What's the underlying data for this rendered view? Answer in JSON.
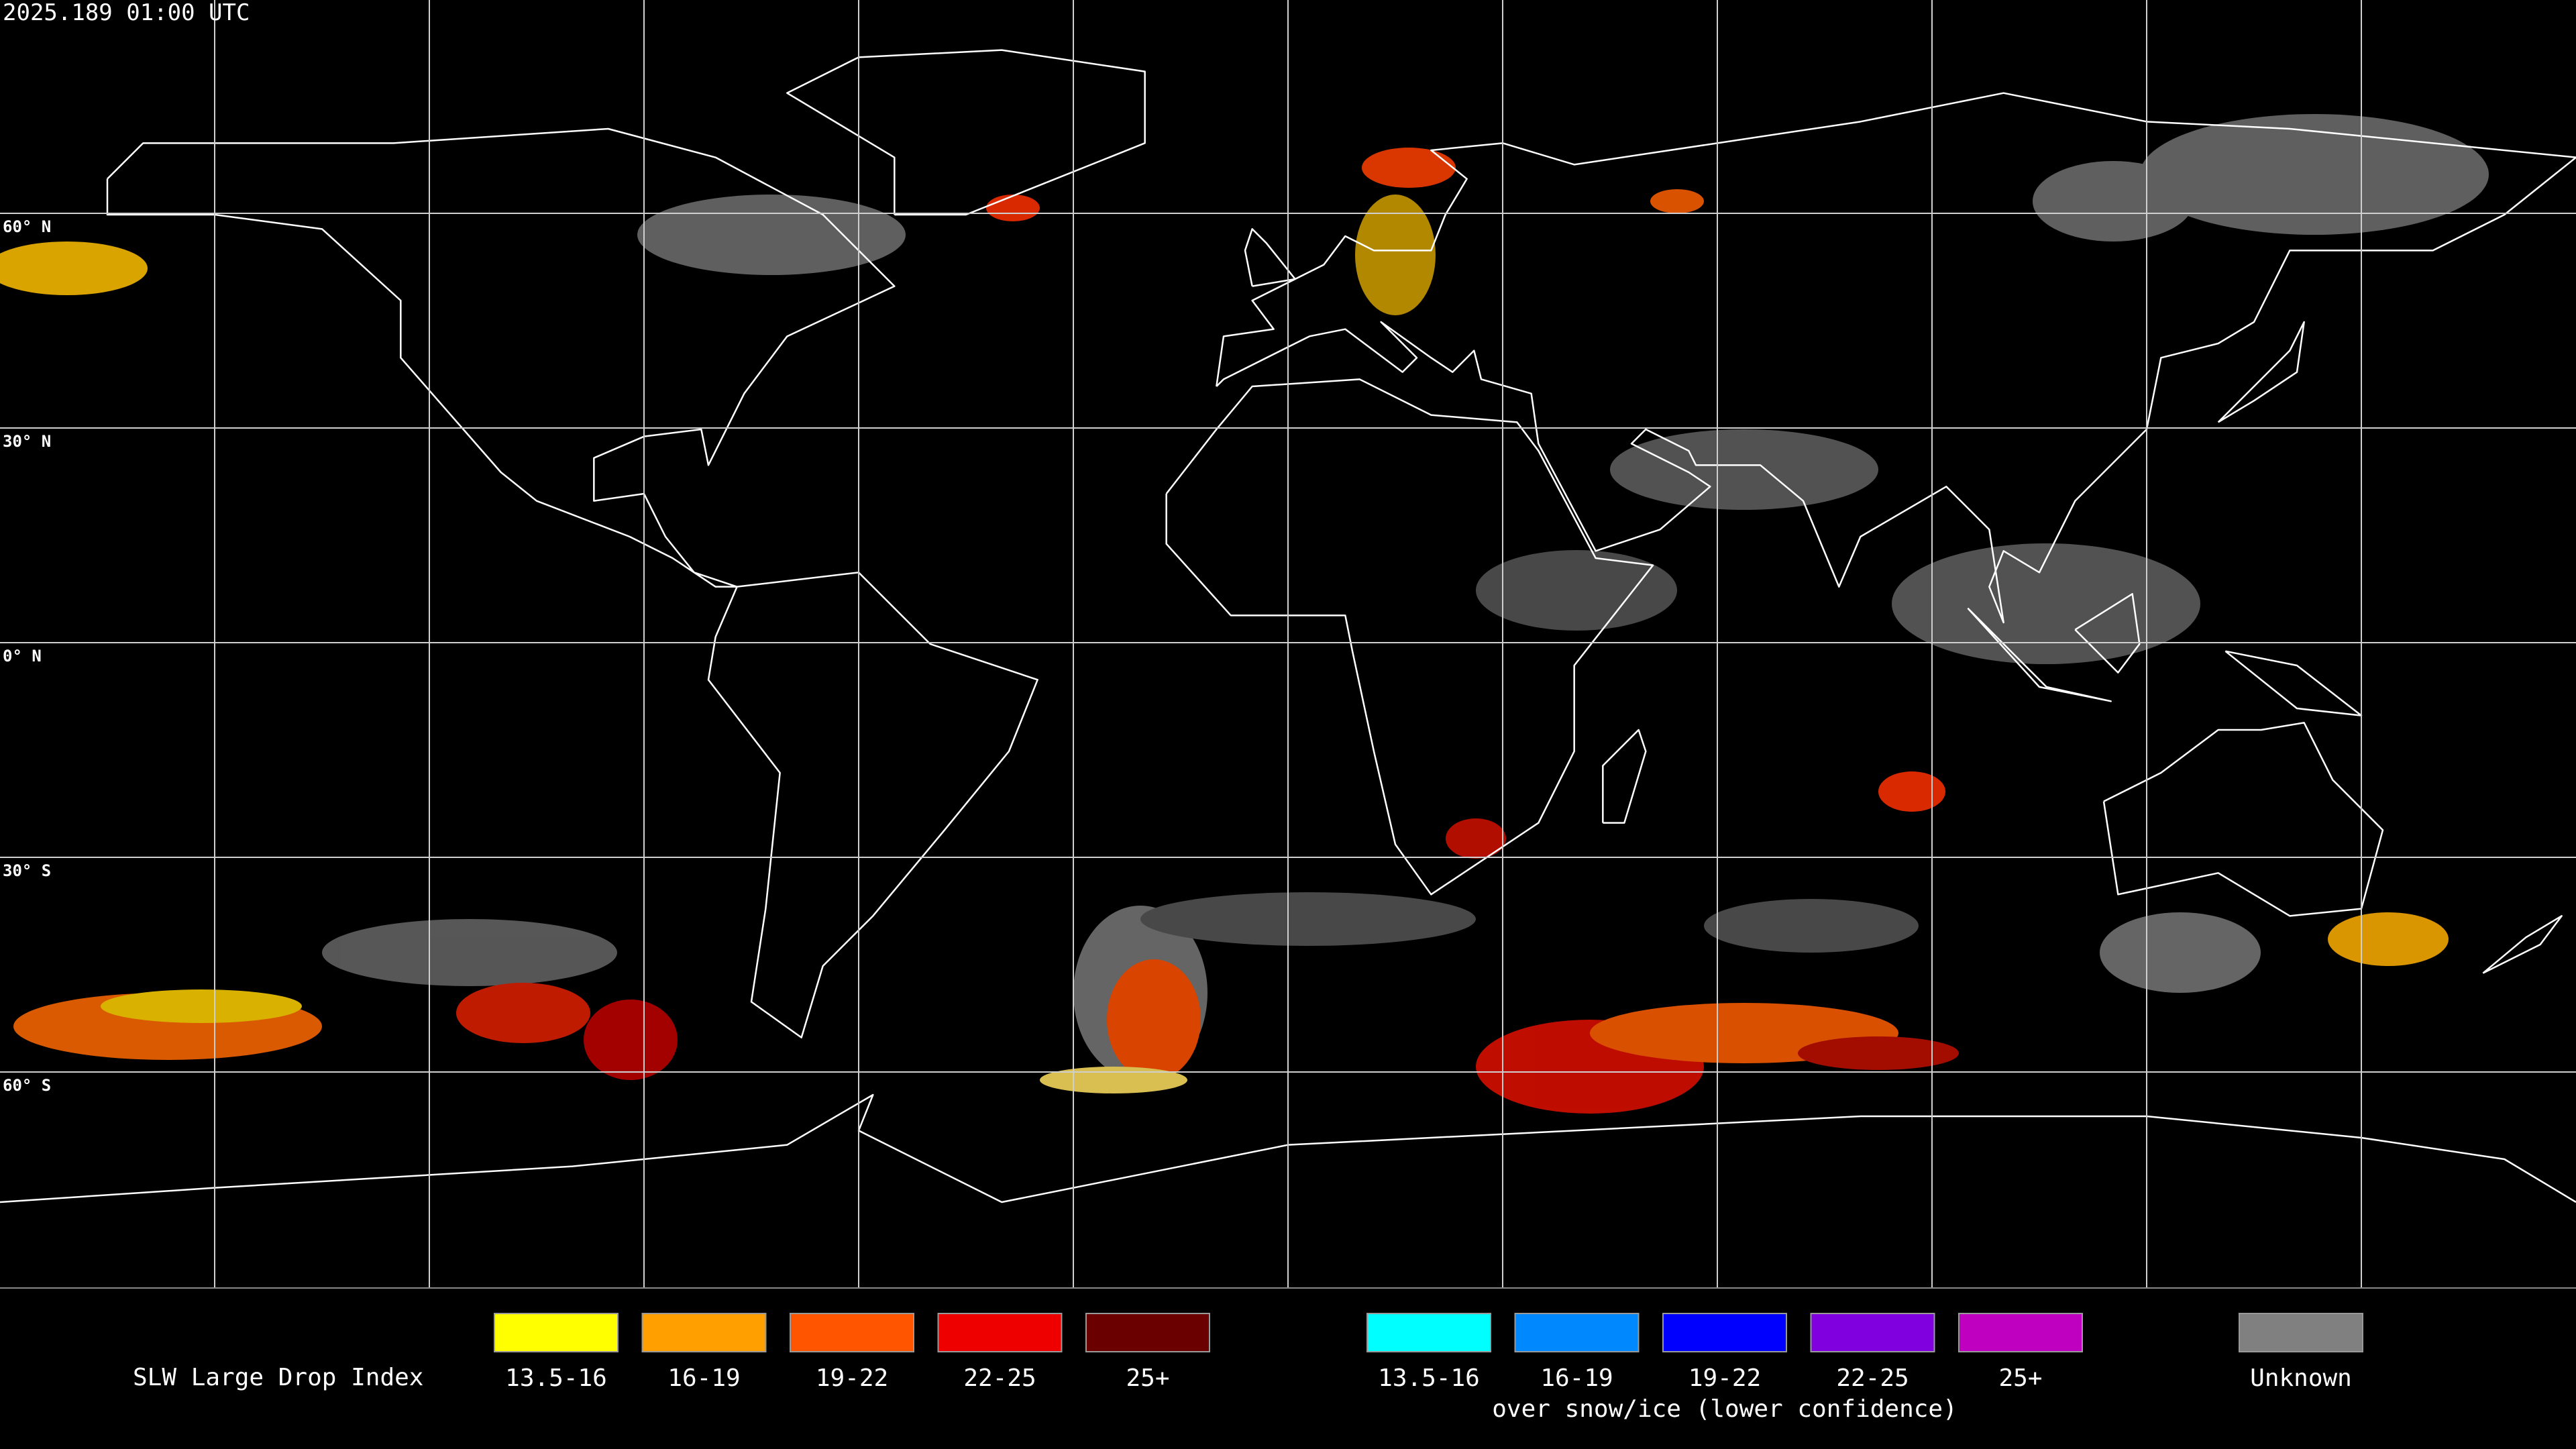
{
  "header": {
    "timestamp": "2025.189 01:00 UTC"
  },
  "latitude_labels": [
    "60° N",
    "30° N",
    "0° N",
    "30° S",
    "60° S"
  ],
  "legend": {
    "title": "SLW Large Drop Index",
    "items": [
      {
        "label": "13.5-16",
        "color": "#ffff00"
      },
      {
        "label": "16-19",
        "color": "#ffa000"
      },
      {
        "label": "19-22",
        "color": "#ff5500"
      },
      {
        "label": "22-25",
        "color": "#ee0000"
      },
      {
        "label": "25+",
        "color": "#6a0000"
      }
    ],
    "snow_ice_items": [
      {
        "label": "13.5-16",
        "color": "#00ffff"
      },
      {
        "label": "16-19",
        "color": "#0088ff"
      },
      {
        "label": "19-22",
        "color": "#0000ff"
      },
      {
        "label": "22-25",
        "color": "#8000e0"
      },
      {
        "label": "25+",
        "color": "#c000c0"
      }
    ],
    "snow_ice_note": "over snow/ice (lower confidence)",
    "unknown": {
      "label": "Unknown",
      "color": "#808080"
    }
  }
}
